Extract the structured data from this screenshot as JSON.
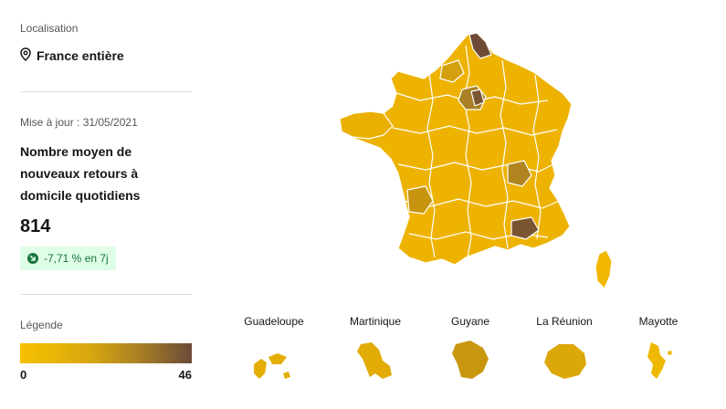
{
  "location": {
    "section_label": "Localisation",
    "current_value": "France entière",
    "icon": "map-pin-icon"
  },
  "indicator": {
    "update_label": "Mise à jour : 31/05/2021",
    "title": "Nombre moyen de nouveaux retours à domicile quotidiens",
    "value": "814",
    "trend_text": "-7,71 % en 7j",
    "trend_icon": "arrow-down-right-icon",
    "trend_color": "#18753c",
    "trend_background": "#dffee6"
  },
  "legend": {
    "label": "Légende",
    "min": "0",
    "max": "46",
    "color_low": "#f7c100",
    "color_high": "#6b4a3a"
  },
  "overseas": [
    {
      "name": "Guadeloupe",
      "color": "#e5ae05"
    },
    {
      "name": "Martinique",
      "color": "#e2ab06"
    },
    {
      "name": "Guyane",
      "color": "#c9970f"
    },
    {
      "name": "La Réunion",
      "color": "#dca708"
    },
    {
      "name": "Mayotte",
      "color": "#efb802"
    }
  ]
}
